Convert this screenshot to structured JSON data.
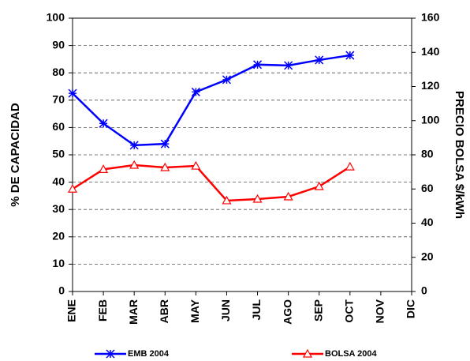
{
  "chart_data": {
    "type": "line",
    "y_label": "% DE CAPACIDAD",
    "y2_label": "PRECIO BOLSA $/kWh",
    "categories": [
      "ENE",
      "FEB",
      "MAR",
      "ABR",
      "MAY",
      "JUN",
      "JUL",
      "AGO",
      "SEP",
      "OCT",
      "NOV",
      "DIC"
    ],
    "series": [
      {
        "name": "EMB 2004",
        "color": "#0000ff",
        "marker": "star",
        "values": [
          72.5,
          61.5,
          53.5,
          54,
          73,
          77.5,
          83,
          82.7,
          84.7,
          86.4,
          null,
          null
        ]
      },
      {
        "name": "BOLSA 2004",
        "color": "#ff0000",
        "marker": "triangle",
        "axis": "y2",
        "values": [
          60,
          71.5,
          74,
          72.6,
          73.5,
          53.2,
          54.1,
          55.5,
          61.5,
          73,
          null,
          null
        ]
      }
    ],
    "ylim": [
      0,
      100
    ],
    "yticks": [
      0,
      10,
      20,
      30,
      40,
      50,
      60,
      70,
      80,
      90,
      100
    ],
    "y2lim": [
      0,
      160
    ],
    "y2ticks": [
      0,
      20,
      40,
      60,
      80,
      100,
      120,
      140,
      160
    ],
    "grid": true
  }
}
